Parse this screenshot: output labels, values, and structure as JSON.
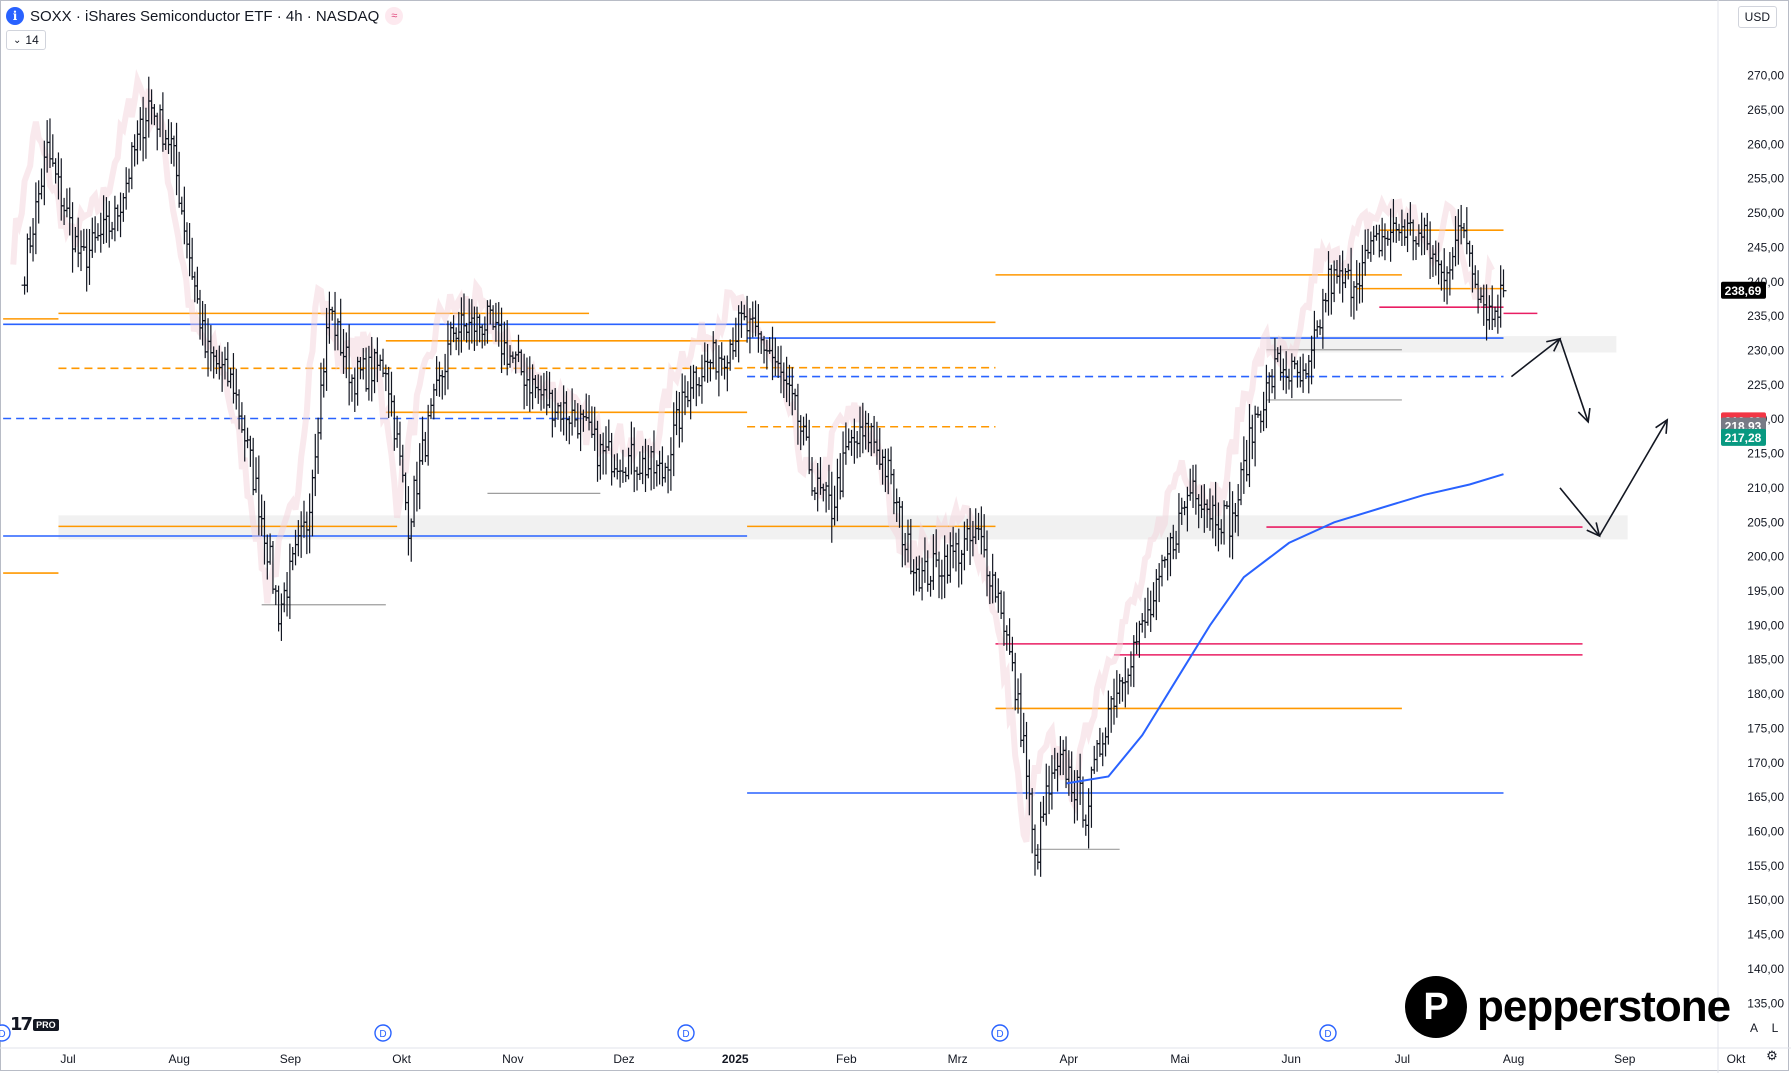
{
  "header": {
    "symbol_icon": "i",
    "title": "SOXX · iShares Semiconductor ETF · 4h · NASDAQ",
    "status_icon": "≈",
    "indicator_toggle": "14"
  },
  "toolbar": {
    "currency": "USD",
    "auto_label": "A",
    "log_label": "L"
  },
  "branding": {
    "platform_mark": "17",
    "platform_badge": "PRO",
    "broker_logo_letter": "P",
    "broker_name": "pepperstone"
  },
  "colors": {
    "price_bars": "#131722",
    "orange_levels": "#ff9800",
    "blue_levels": "#2962ff",
    "pink_levels": "#e91e63",
    "gray_levels": "#9e9e9e",
    "ma_line": "#2962ff",
    "last_price_bg": "#000000",
    "badge_red": "#f23645",
    "badge_gray": "#787b86",
    "badge_green": "#089981"
  },
  "chart_data": {
    "type": "ohlc",
    "timeframe": "4h",
    "ylim": [
      133,
      273
    ],
    "y_ticks": [
      "270,00",
      "265,00",
      "260,00",
      "255,00",
      "250,00",
      "245,00",
      "240,00",
      "235,00",
      "230,00",
      "225,00",
      "220,00",
      "215,00",
      "210,00",
      "205,00",
      "200,00",
      "195,00",
      "190,00",
      "185,00",
      "180,00",
      "175,00",
      "170,00",
      "165,00",
      "160,00",
      "155,00",
      "150,00",
      "145,00",
      "140,00",
      "135,00"
    ],
    "x_ticks": [
      "Jul",
      "Aug",
      "Sep",
      "Okt",
      "Nov",
      "Dez",
      "2025",
      "Feb",
      "Mrz",
      "Apr",
      "Mai",
      "Jun",
      "Jul",
      "Aug",
      "Sep",
      "Okt"
    ],
    "dividend_markers": [
      "D",
      "D",
      "D",
      "D",
      "D",
      "D"
    ],
    "price_labels": [
      {
        "text": "238,69",
        "value": 238.69,
        "color": "#000000"
      },
      {
        "text": "219,69",
        "value": 219.69,
        "color": "#f23645"
      },
      {
        "text": "218,93",
        "value": 218.93,
        "color": "#787b86"
      },
      {
        "text": "217,28",
        "value": 217.28,
        "color": "#089981"
      }
    ],
    "path": [
      [
        2024.48,
        242
      ],
      [
        2024.5,
        259
      ],
      [
        2024.53,
        243
      ],
      [
        2024.56,
        249
      ],
      [
        2024.59,
        266
      ],
      [
        2024.61,
        260
      ],
      [
        2024.64,
        230
      ],
      [
        2024.665,
        225
      ],
      [
        2024.69,
        206
      ],
      [
        2024.705,
        192
      ],
      [
        2024.73,
        205
      ],
      [
        2024.75,
        236
      ],
      [
        2024.77,
        226
      ],
      [
        2024.8,
        228
      ],
      [
        2024.82,
        205
      ],
      [
        2024.835,
        217
      ],
      [
        2024.86,
        233
      ],
      [
        2024.89,
        234
      ],
      [
        2024.915,
        228
      ],
      [
        2024.94,
        223
      ],
      [
        2024.97,
        220
      ],
      [
        2024.99,
        215
      ],
      [
        2025.02,
        214
      ],
      [
        2025.045,
        212
      ],
      [
        2025.07,
        226
      ],
      [
        2025.1,
        230
      ],
      [
        2025.115,
        234
      ],
      [
        2025.14,
        230
      ],
      [
        2025.165,
        220
      ],
      [
        2025.18,
        210
      ],
      [
        2025.195,
        207
      ],
      [
        2025.21,
        216
      ],
      [
        2025.23,
        218
      ],
      [
        2025.245,
        212
      ],
      [
        2025.26,
        202
      ],
      [
        2025.275,
        197
      ],
      [
        2025.3,
        200
      ],
      [
        2025.325,
        203
      ],
      [
        2025.345,
        193
      ],
      [
        2025.365,
        173
      ],
      [
        2025.375,
        155
      ],
      [
        2025.385,
        165
      ],
      [
        2025.4,
        170
      ],
      [
        2025.42,
        163
      ],
      [
        2025.44,
        178
      ],
      [
        2025.46,
        186
      ],
      [
        2025.48,
        193
      ],
      [
        2025.5,
        204
      ],
      [
        2025.515,
        211
      ],
      [
        2025.53,
        207
      ],
      [
        2025.55,
        205
      ],
      [
        2025.57,
        220
      ],
      [
        2025.59,
        228
      ],
      [
        2025.615,
        225
      ],
      [
        2025.635,
        240
      ],
      [
        2025.655,
        240
      ],
      [
        2025.68,
        246
      ],
      [
        2025.7,
        248
      ],
      [
        2025.72,
        246
      ],
      [
        2025.735,
        241
      ],
      [
        2025.755,
        248
      ],
      [
        2025.77,
        238
      ],
      [
        2025.78,
        235
      ],
      [
        2025.79,
        238.7
      ]
    ],
    "moving_average": [
      [
        2025.403,
        167
      ],
      [
        2025.44,
        168
      ],
      [
        2025.47,
        174
      ],
      [
        2025.5,
        182
      ],
      [
        2025.53,
        190
      ],
      [
        2025.56,
        197
      ],
      [
        2025.6,
        202
      ],
      [
        2025.64,
        205
      ],
      [
        2025.68,
        207
      ],
      [
        2025.72,
        209
      ],
      [
        2025.76,
        210.5
      ],
      [
        2025.79,
        212
      ]
    ],
    "levels": [
      {
        "y": 234.6,
        "x1": 2024.461,
        "x2": 2024.51,
        "color": "orange",
        "style": "solid"
      },
      {
        "y": 235.4,
        "x1": 2024.51,
        "x2": 2024.98,
        "color": "orange",
        "style": "solid"
      },
      {
        "y": 233.8,
        "x1": 2024.461,
        "x2": 2025.12,
        "color": "blue",
        "style": "solid"
      },
      {
        "y": 227.4,
        "x1": 2024.51,
        "x2": 2025.12,
        "color": "orange",
        "style": "dashed"
      },
      {
        "y": 220.1,
        "x1": 2024.461,
        "x2": 2024.98,
        "color": "blue",
        "style": "dashed"
      },
      {
        "y": 231.4,
        "x1": 2024.8,
        "x2": 2025.12,
        "color": "orange",
        "style": "solid"
      },
      {
        "y": 204.4,
        "x1": 2024.51,
        "x2": 2024.81,
        "color": "orange",
        "style": "solid"
      },
      {
        "y": 203.0,
        "x1": 2024.461,
        "x2": 2025.12,
        "color": "blue",
        "style": "solid"
      },
      {
        "y": 197.6,
        "x1": 2024.461,
        "x2": 2024.51,
        "color": "orange",
        "style": "solid"
      },
      {
        "y": 221.0,
        "x1": 2024.8,
        "x2": 2025.12,
        "color": "orange",
        "style": "solid"
      },
      {
        "y": 234.1,
        "x1": 2025.12,
        "x2": 2025.34,
        "color": "orange",
        "style": "solid"
      },
      {
        "y": 227.5,
        "x1": 2025.12,
        "x2": 2025.34,
        "color": "orange",
        "style": "dashed"
      },
      {
        "y": 226.2,
        "x1": 2025.12,
        "x2": 2025.79,
        "color": "blue",
        "style": "dashed"
      },
      {
        "y": 218.9,
        "x1": 2025.12,
        "x2": 2025.34,
        "color": "orange",
        "style": "dashed"
      },
      {
        "y": 231.8,
        "x1": 2025.12,
        "x2": 2025.79,
        "color": "blue",
        "style": "solid"
      },
      {
        "y": 241.0,
        "x1": 2025.34,
        "x2": 2025.7,
        "color": "orange",
        "style": "solid"
      },
      {
        "y": 204.4,
        "x1": 2025.12,
        "x2": 2025.34,
        "color": "orange",
        "style": "solid"
      },
      {
        "y": 177.9,
        "x1": 2025.34,
        "x2": 2025.7,
        "color": "orange",
        "style": "solid"
      },
      {
        "y": 165.6,
        "x1": 2025.12,
        "x2": 2025.79,
        "color": "blue",
        "style": "solid"
      },
      {
        "y": 247.5,
        "x1": 2025.68,
        "x2": 2025.79,
        "color": "orange",
        "style": "solid"
      },
      {
        "y": 239.0,
        "x1": 2025.66,
        "x2": 2025.79,
        "color": "orange",
        "style": "solid"
      },
      {
        "y": 236.3,
        "x1": 2025.68,
        "x2": 2025.79,
        "color": "pink",
        "style": "solid"
      },
      {
        "y": 235.4,
        "x1": 2025.79,
        "x2": 2025.82,
        "color": "pink",
        "style": "solid"
      },
      {
        "y": 187.3,
        "x1": 2025.34,
        "x2": 2025.86,
        "color": "pink",
        "style": "solid"
      },
      {
        "y": 185.7,
        "x1": 2025.445,
        "x2": 2025.86,
        "color": "pink",
        "style": "solid"
      },
      {
        "y": 204.3,
        "x1": 2025.58,
        "x2": 2025.86,
        "color": "pink",
        "style": "solid"
      },
      {
        "y": 193.0,
        "x1": 2024.69,
        "x2": 2024.8,
        "color": "gray",
        "style": "solid"
      },
      {
        "y": 209.2,
        "x1": 2024.89,
        "x2": 2024.99,
        "color": "gray",
        "style": "solid"
      },
      {
        "y": 157.4,
        "x1": 2025.375,
        "x2": 2025.45,
        "color": "gray",
        "style": "solid"
      },
      {
        "y": 222.8,
        "x1": 2025.58,
        "x2": 2025.7,
        "color": "gray",
        "style": "solid"
      },
      {
        "y": 230.1,
        "x1": 2025.58,
        "x2": 2025.7,
        "color": "gray",
        "style": "solid"
      }
    ],
    "zones": [
      {
        "y1": 202.5,
        "y2": 206.0,
        "x1": 2024.51,
        "x2": 2025.9
      },
      {
        "y1": 229.7,
        "y2": 232.1,
        "x1": 2025.58,
        "x2": 2025.89
      }
    ],
    "projection_arrows": [
      [
        [
          2025.797,
          226.2
        ],
        [
          2025.84,
          231.7
        ]
      ],
      [
        [
          2025.84,
          231.7
        ],
        [
          2025.865,
          219.6
        ]
      ],
      [
        [
          2025.84,
          210.0
        ],
        [
          2025.875,
          203.0
        ]
      ],
      [
        [
          2025.875,
          203.0
        ],
        [
          2025.935,
          219.9
        ]
      ]
    ]
  }
}
